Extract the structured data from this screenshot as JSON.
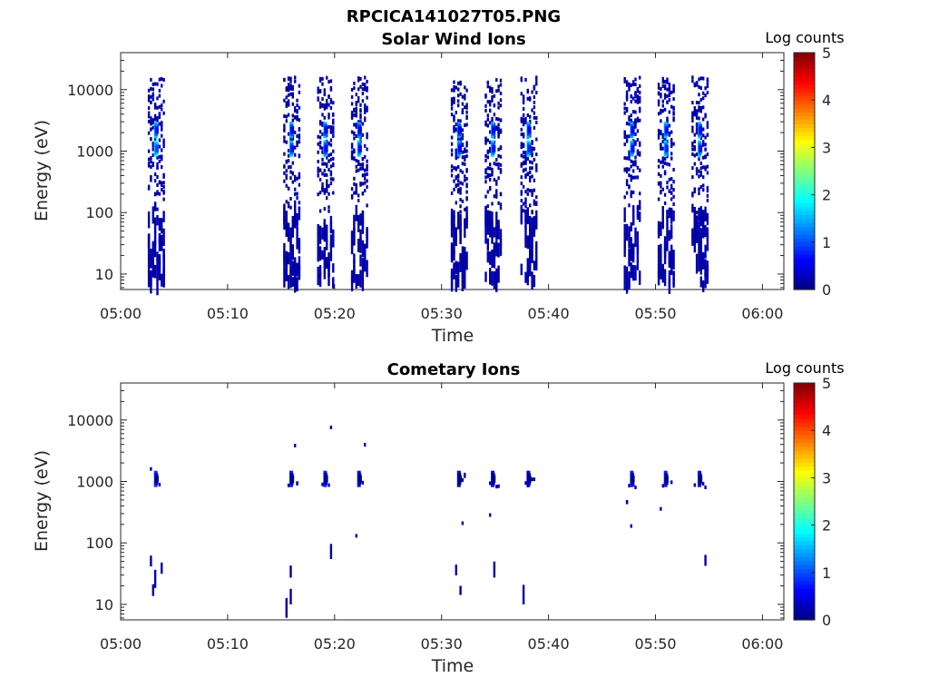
{
  "figure_title": "RPCICA141027T05.PNG",
  "colorbar": {
    "label": "Log counts",
    "min": 0,
    "max": 5,
    "ticks": [
      "0",
      "1",
      "2",
      "3",
      "4",
      "5"
    ],
    "colormap": "jet"
  },
  "chart_data": [
    {
      "type": "heatmap",
      "title": "Solar Wind Ions",
      "xlabel": "Time",
      "ylabel": "Energy (eV)",
      "yscale": "log",
      "ylim": [
        5.6,
        40000
      ],
      "xlim": [
        "05:00",
        "06:02"
      ],
      "xticks": [
        "05:00",
        "05:10",
        "05:20",
        "05:30",
        "05:40",
        "05:50",
        "06:00"
      ],
      "yticks": [
        "10",
        "100",
        "1000",
        "10000"
      ],
      "bursts": [
        {
          "center": "05:03:20",
          "peaks": [
            {
              "energy": 1100,
              "log_counts": 1.9
            },
            {
              "energy": 2200,
              "log_counts": 1.6
            }
          ]
        },
        {
          "center": "05:16:00",
          "peaks": [
            {
              "energy": 1100,
              "log_counts": 1.6
            },
            {
              "energy": 2200,
              "log_counts": 1.5
            }
          ]
        },
        {
          "center": "05:19:10",
          "peaks": [
            {
              "energy": 1100,
              "log_counts": 1.5
            },
            {
              "energy": 2200,
              "log_counts": 1.5
            }
          ]
        },
        {
          "center": "05:22:20",
          "peaks": [
            {
              "energy": 1100,
              "log_counts": 1.6
            },
            {
              "energy": 2200,
              "log_counts": 1.4
            }
          ]
        },
        {
          "center": "05:31:40",
          "peaks": [
            {
              "energy": 1100,
              "log_counts": 1.5
            },
            {
              "energy": 2200,
              "log_counts": 1.4
            }
          ]
        },
        {
          "center": "05:34:50",
          "peaks": [
            {
              "energy": 1100,
              "log_counts": 1.6
            },
            {
              "energy": 2200,
              "log_counts": 1.5
            }
          ]
        },
        {
          "center": "05:38:10",
          "peaks": [
            {
              "energy": 1100,
              "log_counts": 1.7
            },
            {
              "energy": 2200,
              "log_counts": 1.5
            }
          ]
        },
        {
          "center": "05:47:50",
          "peaks": [
            {
              "energy": 1100,
              "log_counts": 1.6
            },
            {
              "energy": 2200,
              "log_counts": 1.5
            }
          ]
        },
        {
          "center": "05:51:00",
          "peaks": [
            {
              "energy": 1100,
              "log_counts": 1.7
            },
            {
              "energy": 2200,
              "log_counts": 1.6
            }
          ]
        },
        {
          "center": "05:54:10",
          "peaks": [
            {
              "energy": 1100,
              "log_counts": 1.6
            },
            {
              "energy": 2200,
              "log_counts": 1.5
            }
          ]
        }
      ],
      "background_log_counts": 0.2
    },
    {
      "type": "heatmap",
      "title": "Cometary Ions",
      "xlabel": "Time",
      "ylabel": "Energy (eV)",
      "yscale": "log",
      "ylim": [
        5.6,
        40000
      ],
      "xlim": [
        "05:00",
        "06:02"
      ],
      "xticks": [
        "05:00",
        "05:10",
        "05:20",
        "05:30",
        "05:40",
        "05:50",
        "06:00"
      ],
      "yticks": [
        "10",
        "100",
        "1000",
        "10000"
      ],
      "bursts": [
        {
          "center": "05:03:20",
          "peaks": [
            {
              "energy": 1100,
              "log_counts": 0.9
            }
          ]
        },
        {
          "center": "05:16:00",
          "peaks": [
            {
              "energy": 1100,
              "log_counts": 0.8
            }
          ]
        },
        {
          "center": "05:19:10",
          "peaks": [
            {
              "energy": 1100,
              "log_counts": 0.8
            }
          ]
        },
        {
          "center": "05:22:20",
          "peaks": [
            {
              "energy": 1100,
              "log_counts": 0.7
            }
          ]
        },
        {
          "center": "05:31:40",
          "peaks": [
            {
              "energy": 1100,
              "log_counts": 0.5
            }
          ]
        },
        {
          "center": "05:34:50",
          "peaks": [
            {
              "energy": 1100,
              "log_counts": 0.6
            }
          ]
        },
        {
          "center": "05:38:10",
          "peaks": [
            {
              "energy": 1100,
              "log_counts": 0.6
            }
          ]
        },
        {
          "center": "05:47:50",
          "peaks": [
            {
              "energy": 1100,
              "log_counts": 0.8
            }
          ]
        },
        {
          "center": "05:51:00",
          "peaks": [
            {
              "energy": 1100,
              "log_counts": 0.8
            }
          ]
        },
        {
          "center": "05:54:10",
          "peaks": [
            {
              "energy": 1100,
              "log_counts": 0.7
            }
          ]
        }
      ],
      "background_log_counts": 0.2
    }
  ]
}
